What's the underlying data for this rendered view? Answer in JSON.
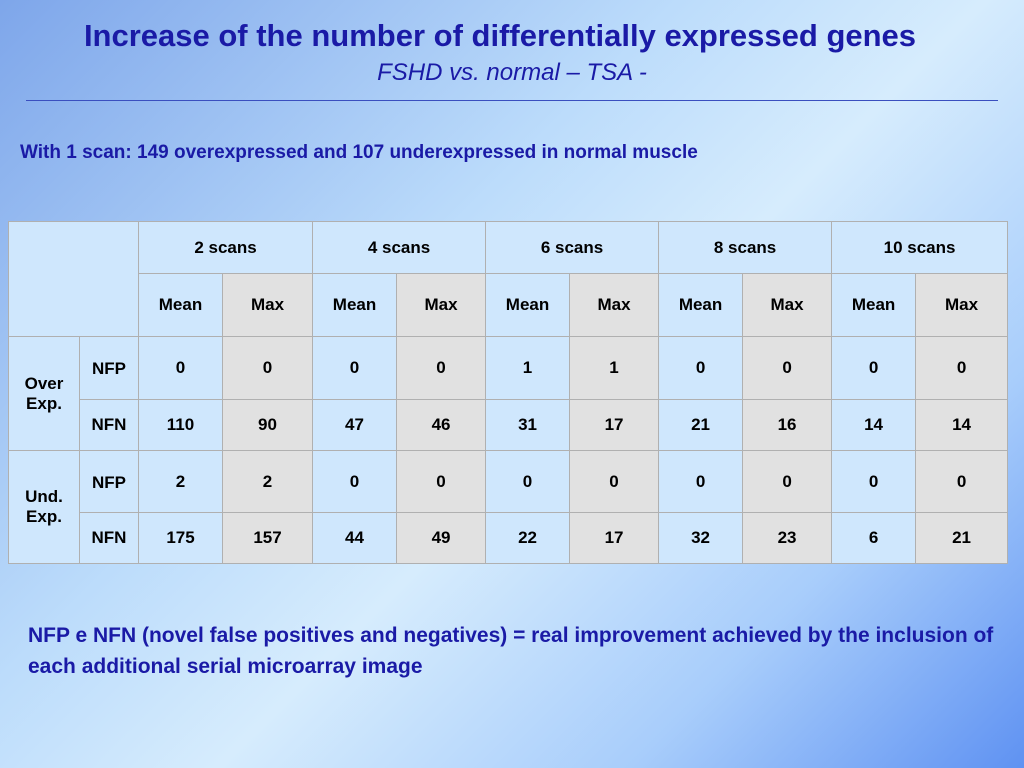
{
  "title": "Increase of the number of differentially expressed genes",
  "subtitle": "FSHD vs. normal – TSA  -",
  "intro": "With 1 scan: 149 overexpressed and 107 underexpressed in normal muscle",
  "table": {
    "scan_groups": [
      "2 scans",
      "4 scans",
      "6 scans",
      "8 scans",
      "10 scans"
    ],
    "stat_labels": [
      "Mean",
      "Max"
    ],
    "groups": [
      {
        "label_line1": "Over",
        "label_line2": "Exp.",
        "rows": [
          {
            "type": "NFP",
            "values": [
              "0",
              "0",
              "0",
              "0",
              "1",
              "1",
              "0",
              "0",
              "0",
              "0"
            ]
          },
          {
            "type": "NFN",
            "values": [
              "110",
              "90",
              "47",
              "46",
              "31",
              "17",
              "21",
              "16",
              "14",
              "14"
            ]
          }
        ]
      },
      {
        "label_line1": "Und.",
        "label_line2": "Exp.",
        "rows": [
          {
            "type": "NFP",
            "values": [
              "2",
              "2",
              "0",
              "0",
              "0",
              "0",
              "0",
              "0",
              "0",
              "0"
            ]
          },
          {
            "type": "NFN",
            "values": [
              "175",
              "157",
              "44",
              "49",
              "22",
              "17",
              "32",
              "23",
              "6",
              "21"
            ]
          }
        ]
      }
    ]
  },
  "note": "NFP e NFN (novel false positives and negatives) = real improvement achieved by the inclusion of each additional serial microarray image",
  "colors": {
    "title": "#1a1aa6",
    "header_cell": "#cfe7fd",
    "max_cell": "#e1e1e1"
  }
}
